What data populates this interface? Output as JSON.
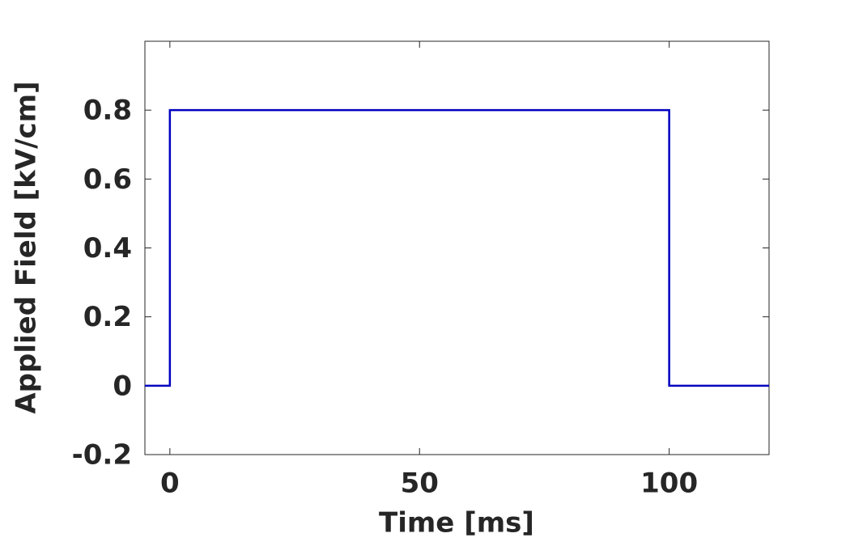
{
  "chart_data": {
    "type": "line",
    "x_label": "Time [ms]",
    "y_label": "Applied Field [kV/cm]",
    "x": [
      -5,
      0,
      0,
      100,
      100,
      120
    ],
    "series": [
      {
        "name": "Applied Field",
        "color": "#0000c0",
        "values": [
          0,
          0,
          0.8,
          0.8,
          0,
          0
        ]
      }
    ],
    "xlim": [
      -5,
      120
    ],
    "xticks": [
      0,
      50,
      100
    ],
    "ylim": [
      -0.2,
      1
    ],
    "yticks": [
      -0.2,
      0,
      0.2,
      0.4,
      0.6,
      0.8
    ],
    "grid": false,
    "legend": false
  }
}
